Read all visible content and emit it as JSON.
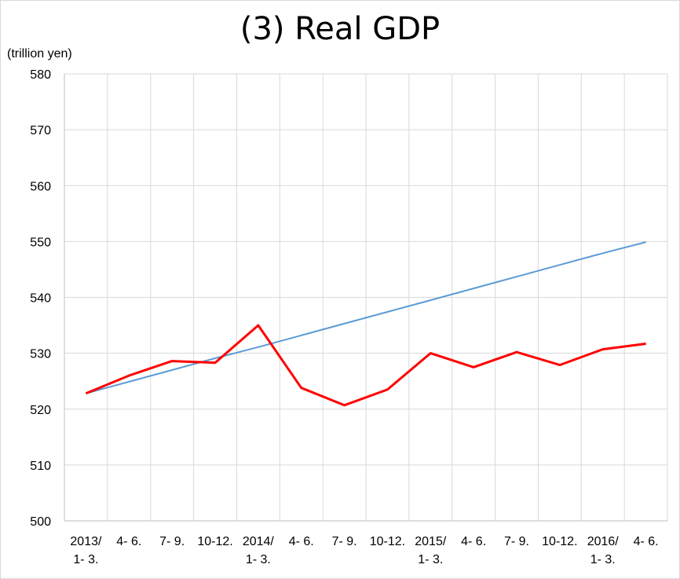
{
  "chart_data": {
    "type": "line",
    "title": "(3) Real GDP",
    "ylabel": "(trillion yen)",
    "xlabel": "",
    "ylim": [
      500,
      580
    ],
    "yticks": [
      500,
      510,
      520,
      530,
      540,
      550,
      560,
      570,
      580
    ],
    "categories": [
      [
        "2013/",
        "1- 3."
      ],
      [
        "4- 6."
      ],
      [
        "7- 9."
      ],
      [
        "10-12."
      ],
      [
        "2014/",
        "1- 3."
      ],
      [
        "4- 6."
      ],
      [
        "7- 9."
      ],
      [
        "10-12."
      ],
      [
        "2015/",
        "1- 3."
      ],
      [
        "4- 6."
      ],
      [
        "7- 9."
      ],
      [
        "10-12."
      ],
      [
        "2016/",
        "1- 3."
      ],
      [
        "4- 6."
      ]
    ],
    "grid": true,
    "series": [
      {
        "color": "#ff0000",
        "values": [
          522.8,
          526.0,
          528.6,
          528.3,
          535.0,
          523.8,
          520.7,
          523.5,
          530.0,
          527.5,
          530.2,
          527.9,
          530.7,
          531.7
        ]
      },
      {
        "color": "#5b9bd5",
        "values": [
          522.8,
          524.9,
          527.0,
          529.1,
          531.1,
          533.2,
          535.3,
          537.4,
          539.5,
          541.6,
          543.7,
          545.8,
          547.9,
          549.9
        ]
      }
    ]
  }
}
